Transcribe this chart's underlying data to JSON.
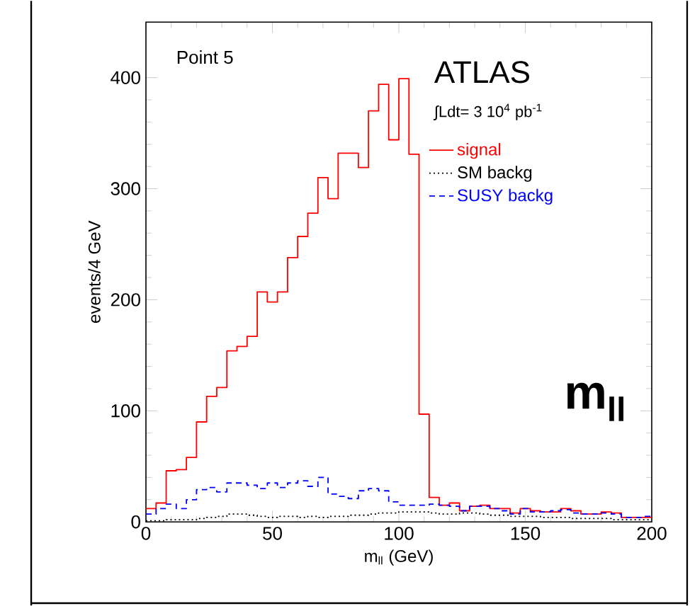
{
  "chart_data": {
    "type": "histogram",
    "xlabel": "m$_{ll}$ (GeV)",
    "ylabel": "events/4 GeV",
    "annotations": [
      "Point 5",
      "ATLAS",
      "∫Ldt= 3 10$^{4}$ pb$^{-1}$",
      "m$_{ll}$"
    ],
    "bins": [
      0,
      4,
      8,
      12,
      16,
      20,
      24,
      28,
      32,
      36,
      40,
      44,
      48,
      52,
      56,
      60,
      64,
      68,
      72,
      76,
      80,
      84,
      88,
      92,
      96,
      100,
      104,
      108,
      112,
      116,
      120,
      124,
      128,
      132,
      136,
      140,
      144,
      148,
      152,
      156,
      160,
      164,
      168,
      172,
      176,
      180,
      184,
      188,
      192,
      196,
      200
    ],
    "series": [
      {
        "name": "signal",
        "color": "#ff0000",
        "line_style": "solid",
        "values": [
          12,
          17,
          46,
          47,
          58,
          90,
          113,
          121,
          154,
          158,
          167,
          207,
          198,
          207,
          238,
          257,
          278,
          310,
          291,
          332,
          332,
          319,
          370,
          394,
          344,
          399,
          331,
          97,
          22,
          15,
          17,
          10,
          14,
          15,
          12,
          12,
          8,
          12,
          10,
          9,
          9,
          12,
          10,
          7,
          7,
          9,
          8,
          4,
          4,
          4
        ]
      },
      {
        "name": "SM backg",
        "color": "#000000",
        "line_style": "dotted",
        "values": [
          1,
          1,
          2,
          2,
          2,
          3,
          4,
          5,
          7,
          7,
          6,
          5,
          4,
          5,
          5,
          4,
          5,
          4,
          5,
          5,
          6,
          6,
          7,
          8,
          8,
          9,
          9,
          9,
          8,
          7,
          7,
          8,
          8,
          7,
          6,
          6,
          5,
          5,
          5,
          4,
          4,
          4,
          3,
          3,
          3,
          3,
          2,
          2,
          2,
          2
        ]
      },
      {
        "name": "SUSY backg",
        "color": "#0000ff",
        "line_style": "dashed",
        "values": [
          7,
          12,
          16,
          12,
          20,
          29,
          31,
          27,
          35,
          35,
          33,
          30,
          35,
          31,
          35,
          37,
          32,
          40,
          25,
          23,
          21,
          28,
          30,
          28,
          18,
          15,
          15,
          15,
          16,
          15,
          14,
          10,
          14,
          14,
          12,
          10,
          7,
          12,
          9,
          9,
          10,
          11,
          8,
          7,
          7,
          8,
          7,
          4,
          4,
          5
        ]
      }
    ],
    "xlim": [
      0,
      200
    ],
    "ylim": [
      0,
      450
    ],
    "xticks": [
      0,
      50,
      100,
      150,
      200
    ],
    "yticks": [
      0,
      100,
      200,
      300,
      400
    ],
    "legend": "top right",
    "grid": false
  }
}
